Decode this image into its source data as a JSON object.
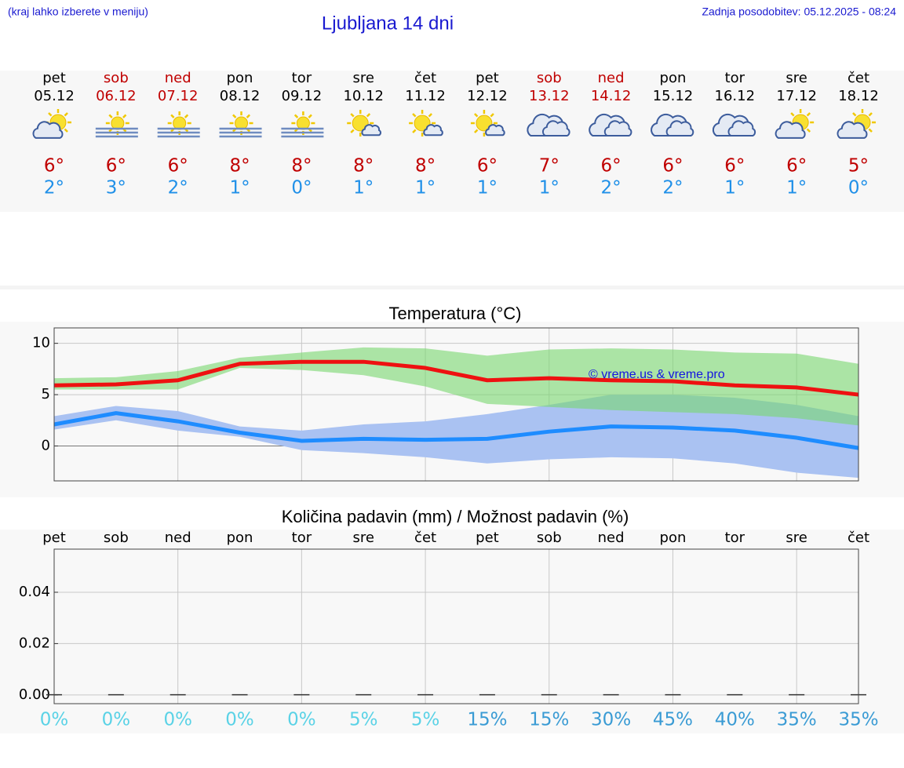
{
  "header": {
    "note": "(kraj lahko izberete v meniju)",
    "title": "Ljubljana 14 dni",
    "updated": "Zadnja posodobitev: 05.12.2025 - 08:24"
  },
  "days": [
    {
      "day": "pet",
      "date": "05.12",
      "max": "6°",
      "min": "2°",
      "weekend": false,
      "icon": "sun-cloud"
    },
    {
      "day": "sob",
      "date": "06.12",
      "max": "6°",
      "min": "3°",
      "weekend": true,
      "icon": "fog"
    },
    {
      "day": "ned",
      "date": "07.12",
      "max": "6°",
      "min": "2°",
      "weekend": true,
      "icon": "fog"
    },
    {
      "day": "pon",
      "date": "08.12",
      "max": "8°",
      "min": "1°",
      "weekend": false,
      "icon": "fog"
    },
    {
      "day": "tor",
      "date": "09.12",
      "max": "8°",
      "min": "0°",
      "weekend": false,
      "icon": "fog"
    },
    {
      "day": "sre",
      "date": "10.12",
      "max": "8°",
      "min": "1°",
      "weekend": false,
      "icon": "sun-small-cloud"
    },
    {
      "day": "čet",
      "date": "11.12",
      "max": "8°",
      "min": "1°",
      "weekend": false,
      "icon": "sun-small-cloud"
    },
    {
      "day": "pet",
      "date": "12.12",
      "max": "6°",
      "min": "1°",
      "weekend": false,
      "icon": "sun-small-cloud"
    },
    {
      "day": "sob",
      "date": "13.12",
      "max": "7°",
      "min": "1°",
      "weekend": true,
      "icon": "cloudy"
    },
    {
      "day": "ned",
      "date": "14.12",
      "max": "6°",
      "min": "2°",
      "weekend": true,
      "icon": "cloudy"
    },
    {
      "day": "pon",
      "date": "15.12",
      "max": "6°",
      "min": "2°",
      "weekend": false,
      "icon": "cloudy"
    },
    {
      "day": "tor",
      "date": "16.12",
      "max": "6°",
      "min": "1°",
      "weekend": false,
      "icon": "cloudy"
    },
    {
      "day": "sre",
      "date": "17.12",
      "max": "6°",
      "min": "1°",
      "weekend": false,
      "icon": "sun-cloud"
    },
    {
      "day": "čet",
      "date": "18.12",
      "max": "5°",
      "min": "0°",
      "weekend": false,
      "icon": "sun-cloud"
    }
  ],
  "chart_data": [
    {
      "type": "line",
      "title": "Temperatura (°C)",
      "categories": [
        null,
        null,
        null,
        null,
        null,
        null,
        null,
        null,
        null,
        null,
        null,
        null,
        null,
        null
      ],
      "ylim": [
        -3.4,
        11.5
      ],
      "yticks": [
        0,
        5,
        10
      ],
      "grid": true,
      "annotation": "© vreme.us & vreme.pro",
      "bands": [
        {
          "color": "#aac2f2",
          "low": [
            1.6,
            2.5,
            1.5,
            0.9,
            -0.4,
            -0.7,
            -1.1,
            -1.7,
            -1.3,
            -1.1,
            -1.2,
            -1.7,
            -2.6,
            -3.1
          ],
          "high": [
            2.9,
            3.9,
            3.4,
            1.9,
            1.5,
            2.1,
            2.4,
            3.1,
            4.0,
            5.0,
            5.0,
            4.7,
            4.0,
            2.9
          ]
        },
        {
          "color": "#78d76e",
          "low": [
            5.5,
            5.5,
            5.5,
            7.6,
            7.4,
            6.9,
            5.8,
            4.1,
            3.8,
            3.5,
            3.3,
            3.1,
            2.7,
            2.0
          ],
          "high": [
            6.6,
            6.7,
            7.3,
            8.6,
            9.1,
            9.6,
            9.5,
            8.8,
            9.4,
            9.5,
            9.4,
            9.1,
            9.0,
            8.0
          ]
        }
      ],
      "series": [
        {
          "color": "#ee1111",
          "values": [
            5.9,
            6.0,
            6.4,
            8.0,
            8.2,
            8.2,
            7.6,
            6.4,
            6.6,
            6.4,
            6.3,
            5.9,
            5.7,
            5.0
          ]
        },
        {
          "color": "#1e8cff",
          "values": [
            2.1,
            3.2,
            2.4,
            1.3,
            0.5,
            0.7,
            0.6,
            0.7,
            1.4,
            1.9,
            1.8,
            1.5,
            0.8,
            -0.2
          ]
        }
      ]
    },
    {
      "type": "bar",
      "title": "Količina padavin (mm) / Možnost padavin (%)",
      "categories": [
        "pet",
        "sob",
        "ned",
        "pon",
        "tor",
        "sre",
        "čet",
        "pet",
        "sob",
        "ned",
        "pon",
        "tor",
        "sre",
        "čet"
      ],
      "values": [
        0,
        0,
        0,
        0,
        0,
        0,
        0,
        0,
        0,
        0,
        0,
        0,
        0,
        0
      ],
      "color": "#333333",
      "ylim": [
        -0.0034,
        0.0568
      ],
      "yticks": [
        {
          "value": 0,
          "label": "0.00"
        },
        {
          "value": 0.02,
          "label": "0.02"
        },
        {
          "value": 0.04,
          "label": "0.04"
        }
      ],
      "grid": true,
      "probability": {
        "values": [
          0,
          0,
          0,
          0,
          0,
          5,
          5,
          15,
          15,
          30,
          45,
          40,
          35,
          35
        ],
        "value_labels": [
          "0%",
          "0%",
          "0%",
          "0%",
          "0%",
          "5%",
          "5%",
          "15%",
          "15%",
          "30%",
          "45%",
          "40%",
          "35%",
          "35%"
        ]
      }
    }
  ]
}
